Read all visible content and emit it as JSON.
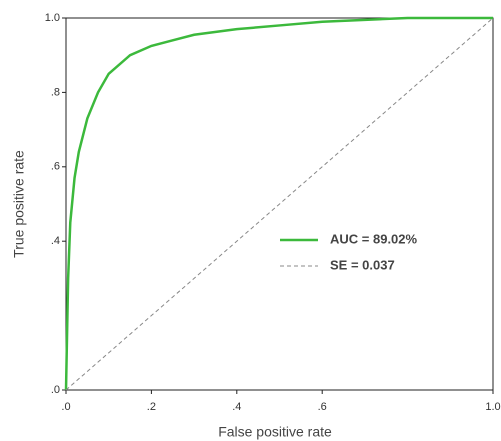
{
  "chart_data": {
    "type": "line",
    "x_label": "False positive rate",
    "y_label": "True positive rate",
    "xlim": [
      0,
      1
    ],
    "ylim": [
      0,
      1
    ],
    "xticks": [
      {
        "value": 0,
        "label": ".0"
      },
      {
        "value": 0.2,
        "label": ".2"
      },
      {
        "value": 0.4,
        "label": ".4"
      },
      {
        "value": 0.6,
        "label": ".6"
      },
      {
        "value": 1,
        "label": "1.0"
      }
    ],
    "yticks": [
      {
        "value": 0,
        "label": ".0"
      },
      {
        "value": 0.4,
        "label": ".4"
      },
      {
        "value": 0.6,
        "label": ".6"
      },
      {
        "value": 0.8,
        "label": ".8"
      },
      {
        "value": 1,
        "label": "1.0"
      }
    ],
    "series": [
      {
        "name": "AUC = 89.02%",
        "color": "#3cb93c",
        "dash": "solid",
        "x": [
          0,
          0.005,
          0.01,
          0.02,
          0.03,
          0.05,
          0.075,
          0.1,
          0.15,
          0.2,
          0.25,
          0.3,
          0.4,
          0.5,
          0.6,
          0.7,
          0.8,
          1
        ],
        "values": [
          0,
          0.3,
          0.45,
          0.57,
          0.64,
          0.73,
          0.8,
          0.85,
          0.9,
          0.925,
          0.94,
          0.955,
          0.97,
          0.98,
          0.99,
          0.995,
          1,
          1
        ]
      },
      {
        "name": "SE = 0.037",
        "color": "#888888",
        "dash": "dashed",
        "x": [
          0,
          1
        ],
        "values": [
          0,
          1
        ]
      }
    ]
  }
}
